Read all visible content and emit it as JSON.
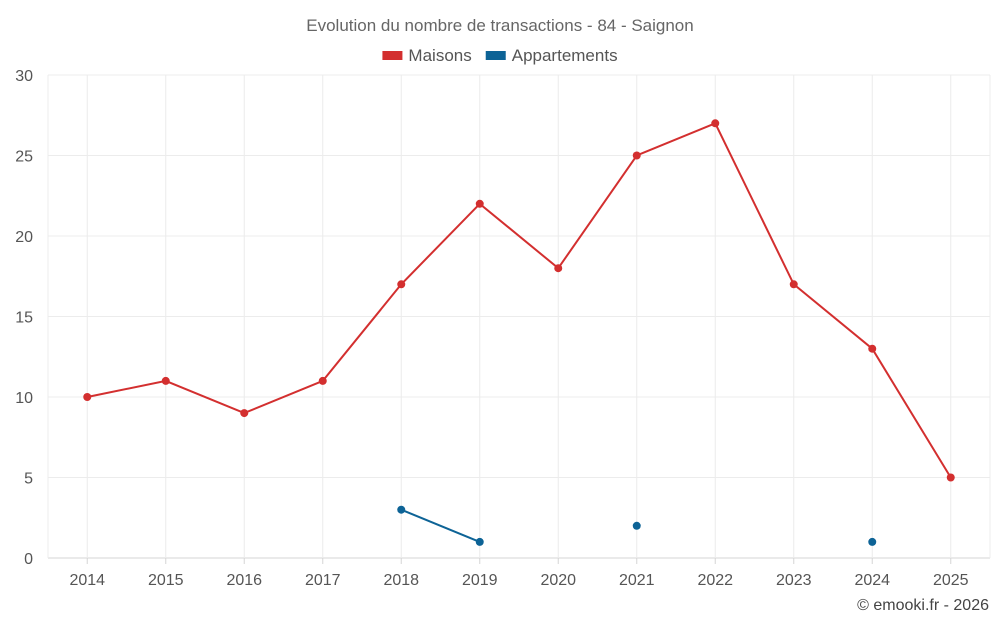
{
  "chart_data": {
    "type": "line",
    "title": "Evolution du nombre de transactions - 84 - Saignon",
    "xlabel": "",
    "ylabel": "",
    "categories": [
      "2014",
      "2015",
      "2016",
      "2017",
      "2018",
      "2019",
      "2020",
      "2021",
      "2022",
      "2023",
      "2024",
      "2025"
    ],
    "ylim": [
      0,
      30
    ],
    "yticks": [
      0,
      5,
      10,
      15,
      20,
      25,
      30
    ],
    "grid": true,
    "legend_position": "top-center",
    "series": [
      {
        "name": "Maisons",
        "color": "#d32f2f",
        "values": [
          10,
          11,
          9,
          11,
          17,
          22,
          18,
          25,
          27,
          17,
          13,
          5
        ]
      },
      {
        "name": "Appartements",
        "color": "#0d6396",
        "values": [
          null,
          null,
          null,
          null,
          3,
          1,
          null,
          2,
          null,
          null,
          1,
          null
        ]
      }
    ]
  },
  "credit": "© emooki.fr - 2026"
}
